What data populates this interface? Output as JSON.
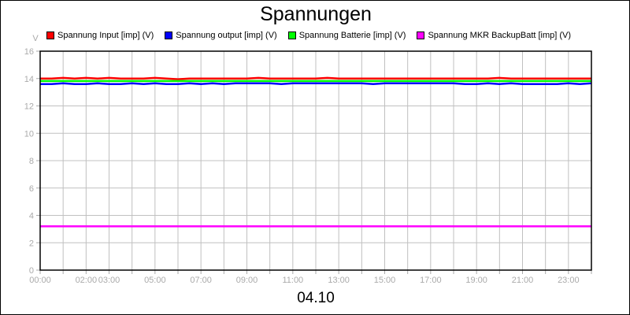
{
  "chart_data": {
    "type": "line",
    "title": "Spannungen",
    "xlabel": "04.10",
    "ylabel": "V",
    "ylim": [
      0,
      16
    ],
    "yticks": [
      "0",
      "2",
      "4",
      "6",
      "8",
      "10",
      "12",
      "14",
      "16"
    ],
    "xlim": [
      "00:00",
      "24:00"
    ],
    "xticks": [
      "00:00",
      "02:00",
      "03:00",
      "05:00",
      "07:00",
      "09:00",
      "11:00",
      "13:00",
      "15:00",
      "17:00",
      "19:00",
      "21:00",
      "23:00"
    ],
    "grid": true,
    "legend_position": "top",
    "x_hours": [
      0,
      0.5,
      1,
      1.5,
      2,
      2.5,
      3,
      3.5,
      4,
      4.5,
      5,
      5.5,
      6,
      6.5,
      7,
      7.5,
      8,
      8.5,
      9,
      9.5,
      10,
      10.5,
      11,
      11.5,
      12,
      12.5,
      13,
      13.5,
      14,
      14.5,
      15,
      15.5,
      16,
      16.5,
      17,
      17.5,
      18,
      18.5,
      19,
      19.5,
      20,
      20.5,
      21,
      21.5,
      22,
      22.5,
      23,
      23.5,
      24
    ],
    "series": [
      {
        "name": "Spannung Input [imp] (V)",
        "color": "#ff0000",
        "values": [
          14.0,
          14.0,
          14.05,
          14.0,
          14.05,
          14.0,
          14.05,
          14.0,
          14.0,
          14.0,
          14.05,
          14.0,
          13.95,
          14.0,
          14.0,
          14.0,
          14.0,
          14.0,
          14.0,
          14.05,
          14.0,
          14.0,
          14.0,
          14.0,
          14.0,
          14.05,
          14.0,
          14.0,
          14.0,
          14.0,
          14.0,
          14.0,
          14.0,
          14.0,
          14.0,
          14.0,
          14.0,
          14.0,
          14.0,
          14.0,
          14.05,
          14.0,
          14.0,
          14.0,
          14.0,
          14.0,
          14.0,
          14.0,
          14.0
        ]
      },
      {
        "name": "Spannung output [imp] (V)",
        "color": "#0000ff",
        "values": [
          13.6,
          13.6,
          13.65,
          13.6,
          13.6,
          13.65,
          13.6,
          13.6,
          13.65,
          13.6,
          13.65,
          13.6,
          13.6,
          13.65,
          13.6,
          13.65,
          13.6,
          13.65,
          13.65,
          13.65,
          13.65,
          13.6,
          13.65,
          13.65,
          13.65,
          13.65,
          13.65,
          13.65,
          13.65,
          13.6,
          13.65,
          13.65,
          13.65,
          13.65,
          13.65,
          13.65,
          13.65,
          13.6,
          13.6,
          13.65,
          13.6,
          13.65,
          13.6,
          13.6,
          13.6,
          13.6,
          13.65,
          13.6,
          13.65
        ]
      },
      {
        "name": "Spannung Batterie [imp] (V)",
        "color": "#00ff00",
        "values": [
          13.82,
          13.82,
          13.82,
          13.82,
          13.82,
          13.82,
          13.82,
          13.82,
          13.82,
          13.82,
          13.82,
          13.82,
          13.82,
          13.82,
          13.82,
          13.82,
          13.82,
          13.82,
          13.82,
          13.82,
          13.82,
          13.82,
          13.82,
          13.82,
          13.82,
          13.82,
          13.82,
          13.82,
          13.82,
          13.82,
          13.82,
          13.82,
          13.82,
          13.82,
          13.82,
          13.82,
          13.82,
          13.82,
          13.82,
          13.82,
          13.82,
          13.82,
          13.82,
          13.82,
          13.82,
          13.82,
          13.82,
          13.82,
          13.82
        ]
      },
      {
        "name": "Spannung MKR BackupBatt [imp] (V)",
        "color": "#ff00ff",
        "values": [
          3.2,
          3.2,
          3.2,
          3.2,
          3.2,
          3.2,
          3.2,
          3.2,
          3.2,
          3.2,
          3.2,
          3.2,
          3.2,
          3.2,
          3.2,
          3.2,
          3.2,
          3.2,
          3.2,
          3.2,
          3.2,
          3.2,
          3.2,
          3.2,
          3.2,
          3.2,
          3.2,
          3.2,
          3.2,
          3.2,
          3.2,
          3.2,
          3.2,
          3.2,
          3.2,
          3.2,
          3.2,
          3.2,
          3.2,
          3.2,
          3.2,
          3.2,
          3.2,
          3.2,
          3.2,
          3.2,
          3.2,
          3.2,
          3.2
        ]
      }
    ]
  }
}
